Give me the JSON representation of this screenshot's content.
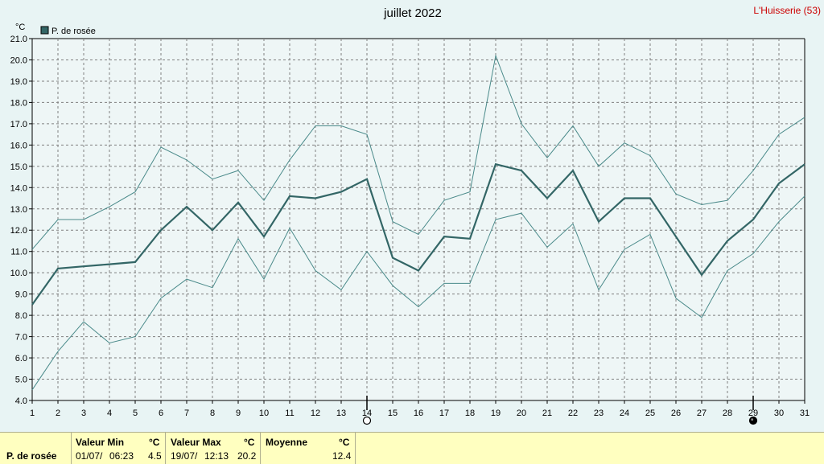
{
  "title": "juillet 2022",
  "station": "L'Huisserie (53)",
  "unit_label": "°C",
  "legend": {
    "label": "P. de rosée",
    "color": "#336666"
  },
  "colors": {
    "main_line": "#336666",
    "band_line": "#4a8a8a",
    "grid": "#808080",
    "background": "#eef6f6"
  },
  "chart_data": {
    "type": "line",
    "title": "juillet 2022",
    "ylabel": "°C",
    "ylim": [
      4.0,
      21.0
    ],
    "y_ticks": [
      "4.0",
      "5.0",
      "6.0",
      "7.0",
      "8.0",
      "9.0",
      "10.0",
      "11.0",
      "12.0",
      "13.0",
      "14.0",
      "15.0",
      "16.0",
      "17.0",
      "18.0",
      "19.0",
      "20.0",
      "21.0"
    ],
    "x": [
      1,
      2,
      3,
      4,
      5,
      6,
      7,
      8,
      9,
      10,
      11,
      12,
      13,
      14,
      15,
      16,
      17,
      18,
      19,
      20,
      21,
      22,
      23,
      24,
      25,
      26,
      27,
      28,
      29,
      30,
      31
    ],
    "x_ticks": [
      "1",
      "2",
      "3",
      "4",
      "5",
      "6",
      "7",
      "8",
      "9",
      "10",
      "11",
      "12",
      "13",
      "14",
      "15",
      "16",
      "17",
      "18",
      "19",
      "20",
      "21",
      "22",
      "23",
      "24",
      "25",
      "26",
      "27",
      "28",
      "29",
      "30",
      "31"
    ],
    "grid": true,
    "legend_position": "top-left",
    "series": [
      {
        "name": "P. de rosée",
        "role": "mean",
        "values": [
          8.5,
          10.2,
          10.3,
          10.4,
          10.5,
          12.0,
          13.1,
          12.0,
          13.3,
          11.7,
          13.6,
          13.5,
          13.8,
          14.4,
          10.7,
          10.1,
          11.7,
          11.6,
          15.1,
          14.8,
          13.5,
          14.8,
          12.4,
          13.5,
          13.5,
          11.7,
          9.9,
          11.5,
          12.5,
          14.2,
          15.1
        ]
      },
      {
        "role": "max",
        "values": [
          11.1,
          12.5,
          12.5,
          13.1,
          13.8,
          15.9,
          15.3,
          14.4,
          14.8,
          13.4,
          15.3,
          16.9,
          16.9,
          16.5,
          12.4,
          11.8,
          13.4,
          13.8,
          20.2,
          17.0,
          15.4,
          16.9,
          15.0,
          16.1,
          15.5,
          13.7,
          13.2,
          13.4,
          14.8,
          16.5,
          17.3
        ]
      },
      {
        "role": "min",
        "values": [
          4.5,
          6.3,
          7.7,
          6.7,
          7.0,
          8.8,
          9.7,
          9.3,
          11.6,
          9.7,
          12.1,
          10.1,
          9.2,
          11.0,
          9.4,
          8.4,
          9.5,
          9.5,
          12.5,
          12.8,
          11.2,
          12.3,
          9.2,
          11.1,
          11.8,
          8.8,
          7.9,
          10.1,
          10.9,
          12.4,
          13.6
        ]
      }
    ],
    "moon_phases": [
      {
        "day": 14,
        "phase": "full-moon"
      },
      {
        "day": 29,
        "phase": "new-moon"
      }
    ]
  },
  "summary": {
    "row_label": "P. de rosée",
    "min": {
      "header": "Valeur Min",
      "unit": "°C",
      "date": "01/07/",
      "time": "06:23",
      "value": "4.5"
    },
    "max": {
      "header": "Valeur Max",
      "unit": "°C",
      "date": "19/07/",
      "time": "12:13",
      "value": "20.2"
    },
    "avg": {
      "header": "Moyenne",
      "unit": "°C",
      "value": "12.4"
    }
  }
}
